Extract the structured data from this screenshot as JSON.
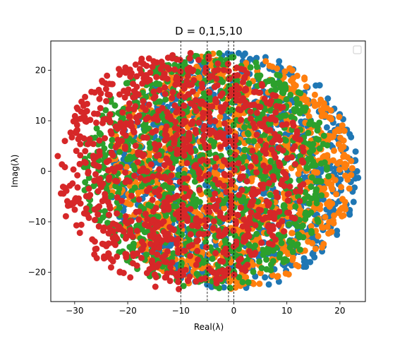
{
  "chart_data": {
    "type": "scatter",
    "title": "D = 0,1,5,10",
    "xlabel": "Real(λ)",
    "ylabel": "Imag(λ)",
    "xlim": [
      -34.5,
      24.8
    ],
    "ylim": [
      -25.8,
      25.8
    ],
    "xticks": [
      -30,
      -20,
      -10,
      0,
      10,
      20
    ],
    "yticks": [
      -20,
      -10,
      0,
      10,
      20
    ],
    "xtick_labels": [
      "−30",
      "−20",
      "−10",
      "0",
      "10",
      "20"
    ],
    "ytick_labels": [
      "−20",
      "−10",
      "0",
      "10",
      "20"
    ],
    "grid": false,
    "legend": {
      "placement": "top-right",
      "entries": []
    },
    "vlines": [
      0,
      -1,
      -5,
      -10
    ],
    "series": [
      {
        "shift": 0,
        "color": "#1f77b4",
        "radius": 23.5,
        "n": 1000,
        "seed": 11
      },
      {
        "shift": -1,
        "color": "#ff7f0e",
        "radius": 23.5,
        "n": 1000,
        "seed": 23
      },
      {
        "shift": -5,
        "color": "#2ca02c",
        "radius": 23.5,
        "n": 1000,
        "seed": 37
      },
      {
        "shift": -10,
        "color": "#d62728",
        "radius": 23.5,
        "n": 1000,
        "seed": 53
      }
    ]
  }
}
